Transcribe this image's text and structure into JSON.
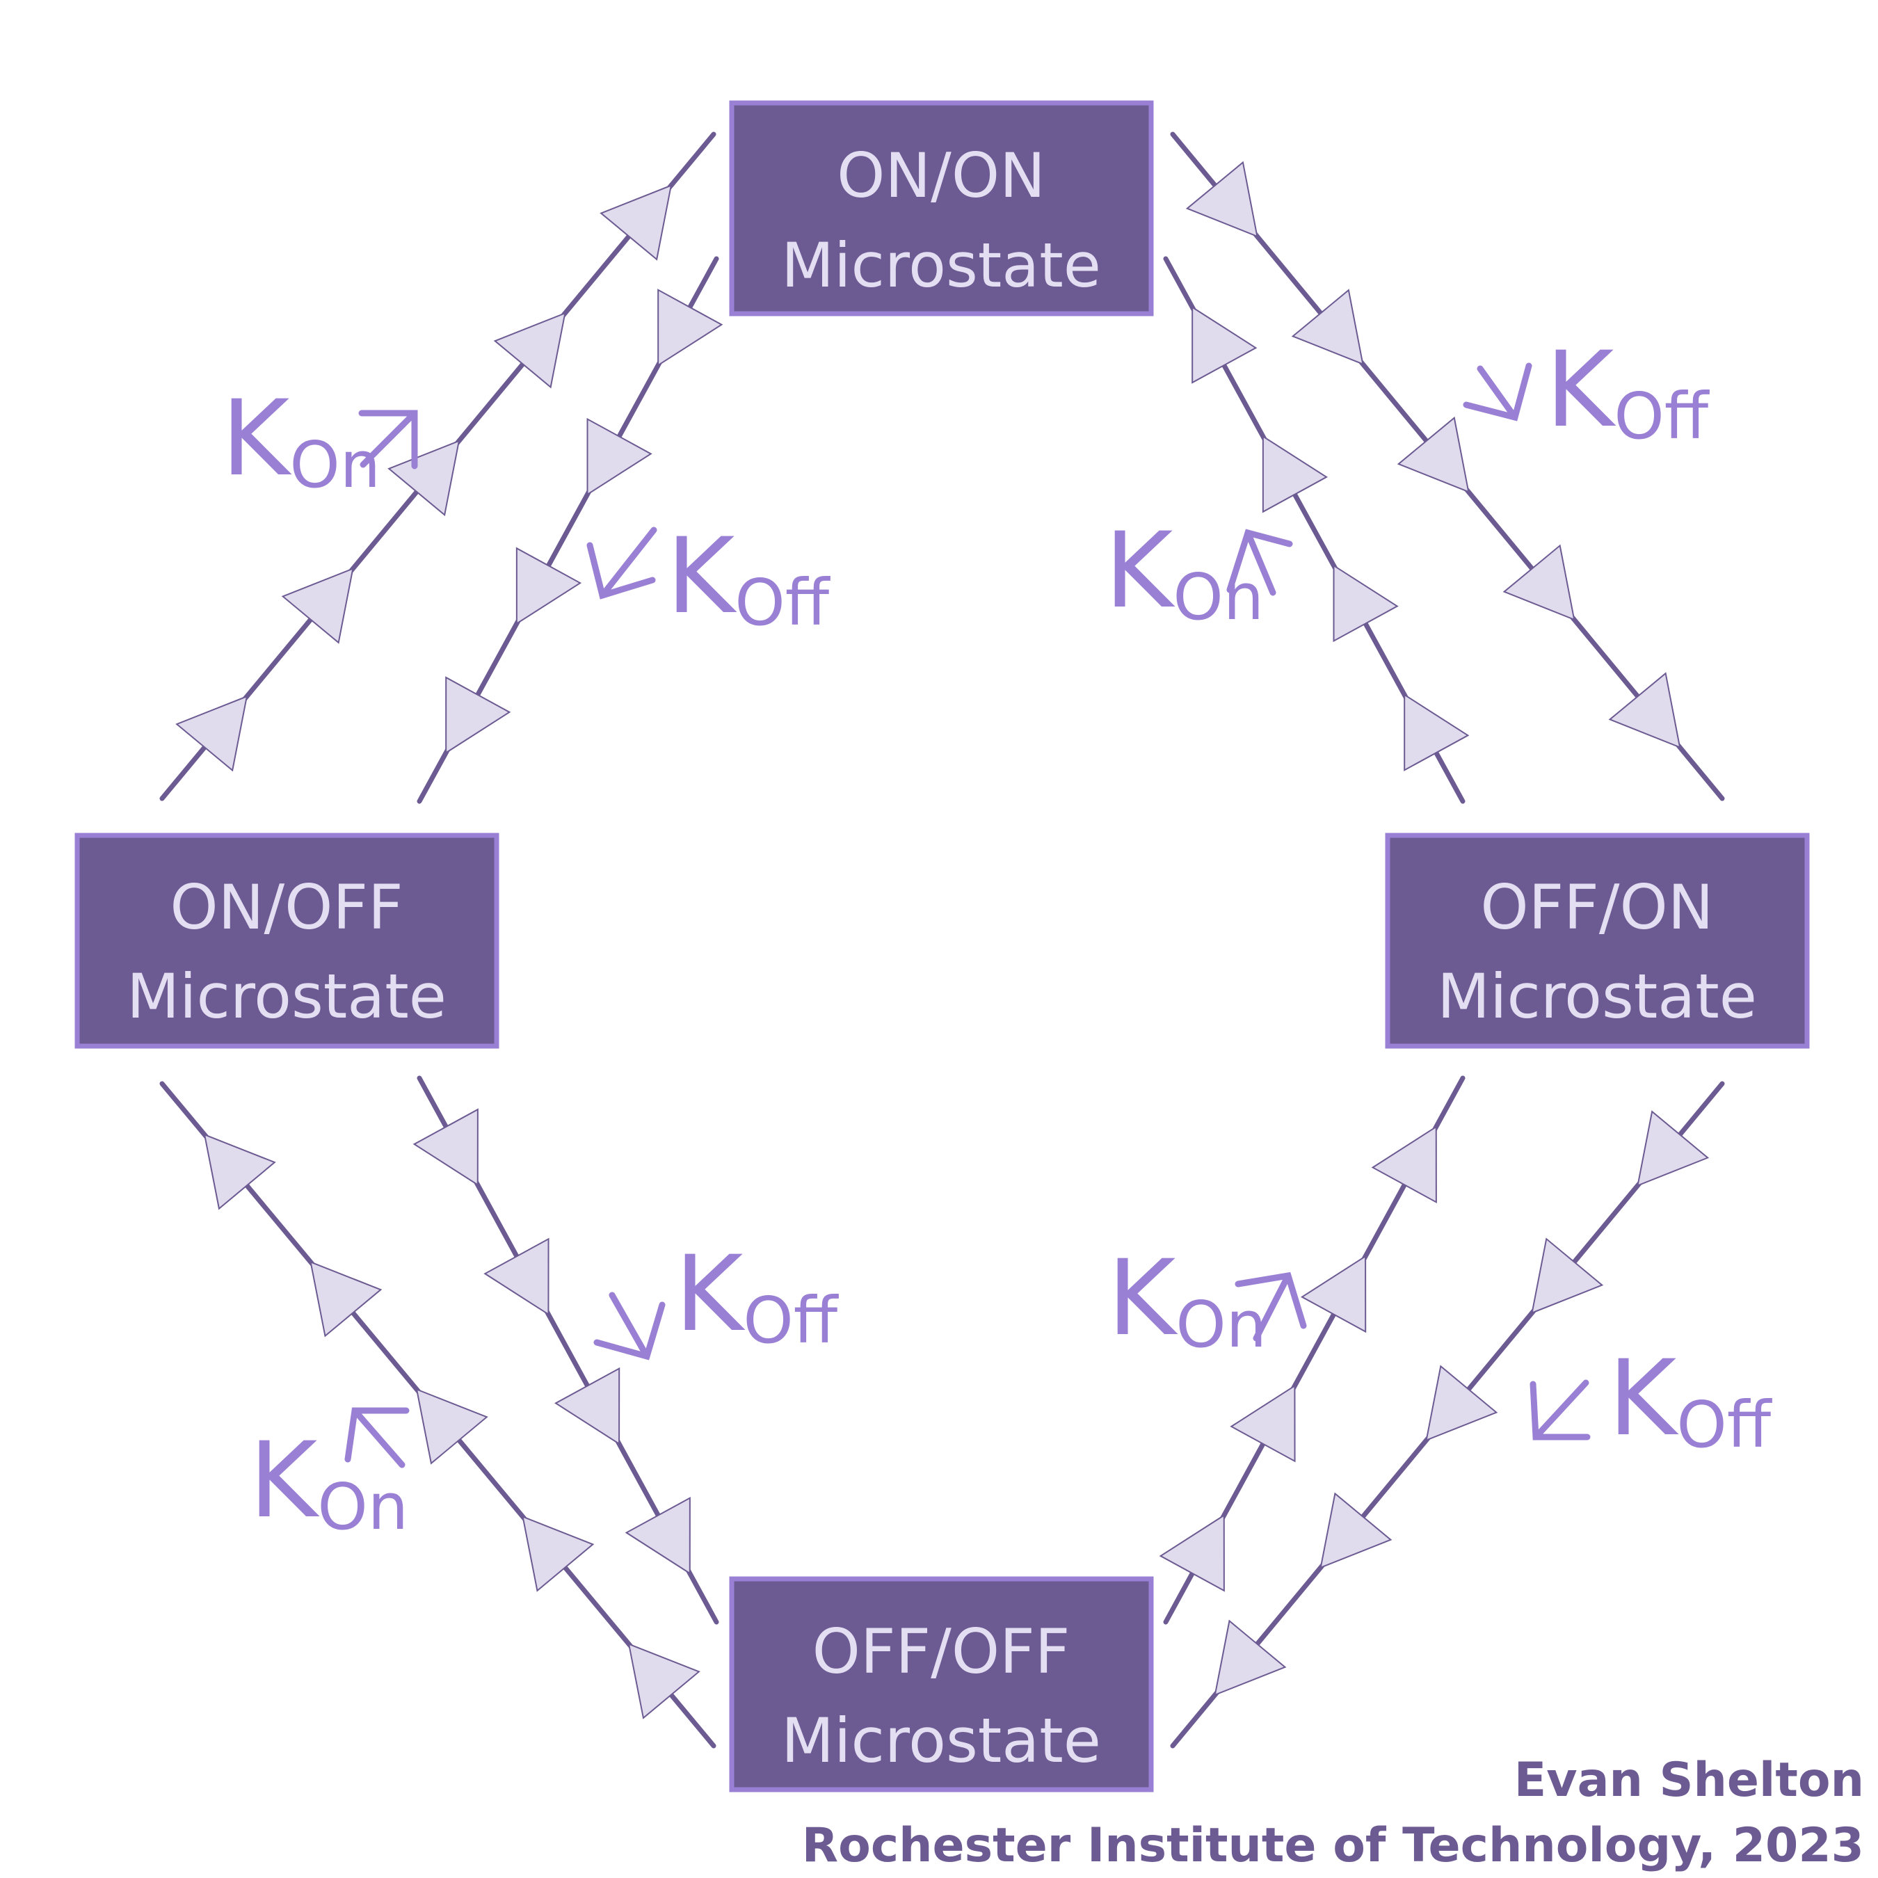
{
  "states": {
    "on_on": {
      "line1": "ON/ON",
      "line2": "Microstate"
    },
    "on_off": {
      "line1": "ON/OFF",
      "line2": "Microstate"
    },
    "off_on": {
      "line1": "OFF/ON",
      "line2": "Microstate"
    },
    "off_off": {
      "line1": "OFF/OFF",
      "line2": "Microstate"
    }
  },
  "rates": {
    "k": "K",
    "on": "On",
    "off": "Off"
  },
  "credit": {
    "author": "Evan Shelton",
    "institution": "Rochester Institute of Technology, 2023"
  },
  "colors": {
    "box_fill": "#6c5a92",
    "box_stroke": "#9a80d4",
    "box_text": "#e4def2",
    "line": "#6c5a92",
    "arrow_fill": "#e0dcee",
    "label": "#9a80d4"
  }
}
